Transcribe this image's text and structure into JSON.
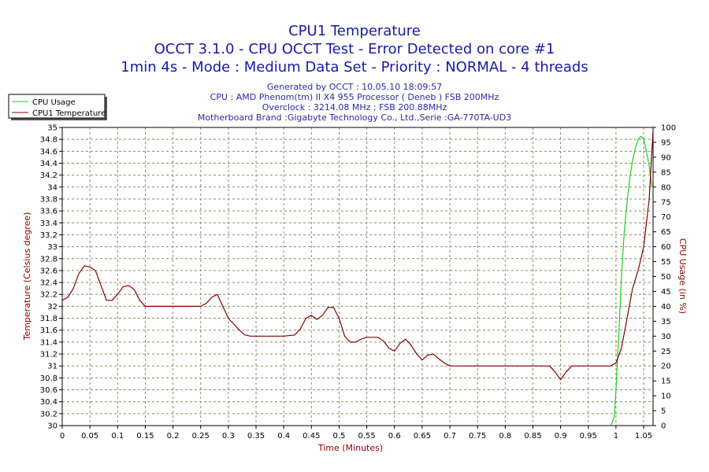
{
  "chart_data": {
    "type": "line",
    "titles": [
      "CPU1 Temperature",
      "OCCT 3.1.0 - CPU OCCT Test - Error Detected on core #1",
      "1min 4s - Mode : Medium Data Set - Priority : NORMAL - 4 threads"
    ],
    "info_lines": [
      "Generated by OCCT : 10.05.10 18:09:57",
      "CPU : AMD Phenom(tm) II X4 955 Processor ( Deneb ) FSB 200MHz",
      "Overclock : 3214.08 MHz ; FSB 200.88MHz",
      "Motherboard Brand :Gigabyte Technology Co., Ltd.,Serie :GA-770TA-UD3"
    ],
    "xlabel": "Time (Minutes)",
    "ylabel_left": "Temperature (Celsius degree)",
    "ylabel_right": "CPU Usage (in %)",
    "xlim": [
      0,
      1.067
    ],
    "ylim_left": [
      30,
      35
    ],
    "ylim_right": [
      0,
      100
    ],
    "x_ticks": [
      "0",
      "0.05",
      "0.1",
      "0.15",
      "0.2",
      "0.25",
      "0.3",
      "0.35",
      "0.4",
      "0.45",
      "0.5",
      "0.55",
      "0.6",
      "0.65",
      "0.7",
      "0.75",
      "0.8",
      "0.85",
      "0.9",
      "0.95",
      "1",
      "1.05"
    ],
    "y_ticks_left": [
      "30",
      "30.2",
      "30.4",
      "30.6",
      "30.8",
      "31",
      "31.2",
      "31.4",
      "31.6",
      "31.8",
      "32",
      "32.2",
      "32.4",
      "32.6",
      "32.8",
      "33",
      "33.2",
      "33.4",
      "33.6",
      "33.8",
      "34",
      "34.2",
      "34.4",
      "34.6",
      "34.8",
      "35"
    ],
    "y_ticks_right": [
      "0",
      "5",
      "10",
      "15",
      "20",
      "25",
      "30",
      "35",
      "40",
      "45",
      "50",
      "55",
      "60",
      "65",
      "70",
      "75",
      "80",
      "85",
      "90",
      "95",
      "100"
    ],
    "grid": true,
    "legend_position": "top-left",
    "series": [
      {
        "name": "CPU Usage",
        "color": "#22cc22",
        "axis": "right",
        "x": [
          0.991,
          0.997,
          1.0,
          1.005,
          1.01,
          1.015,
          1.02,
          1.025,
          1.03,
          1.035,
          1.04,
          1.045,
          1.05,
          1.055,
          1.06,
          1.065
        ],
        "y": [
          0,
          3,
          12,
          30,
          50,
          65,
          75,
          83,
          89,
          93,
          96,
          97,
          96,
          92,
          87,
          80
        ]
      },
      {
        "name": "CPU1 Temperature",
        "color": "#800000",
        "axis": "left",
        "x": [
          0.0,
          0.01,
          0.02,
          0.03,
          0.04,
          0.05,
          0.06,
          0.07,
          0.08,
          0.09,
          0.1,
          0.11,
          0.12,
          0.13,
          0.14,
          0.15,
          0.16,
          0.2,
          0.25,
          0.26,
          0.27,
          0.28,
          0.29,
          0.3,
          0.31,
          0.32,
          0.33,
          0.34,
          0.35,
          0.4,
          0.42,
          0.43,
          0.44,
          0.45,
          0.46,
          0.47,
          0.48,
          0.49,
          0.5,
          0.51,
          0.52,
          0.53,
          0.54,
          0.55,
          0.56,
          0.57,
          0.58,
          0.59,
          0.6,
          0.61,
          0.62,
          0.63,
          0.64,
          0.65,
          0.66,
          0.67,
          0.68,
          0.69,
          0.7,
          0.75,
          0.8,
          0.85,
          0.88,
          0.89,
          0.9,
          0.91,
          0.92,
          0.95,
          0.99,
          1.0,
          1.01,
          1.02,
          1.03,
          1.04,
          1.05,
          1.06,
          1.067
        ],
        "y": [
          32.1,
          32.15,
          32.3,
          32.55,
          32.68,
          32.66,
          32.6,
          32.35,
          32.1,
          32.1,
          32.2,
          32.33,
          32.35,
          32.28,
          32.1,
          32.0,
          32.0,
          32.0,
          32.0,
          32.05,
          32.15,
          32.2,
          32.0,
          31.8,
          31.7,
          31.6,
          31.52,
          31.5,
          31.5,
          31.5,
          31.52,
          31.62,
          31.8,
          31.85,
          31.78,
          31.85,
          31.98,
          31.98,
          31.8,
          31.5,
          31.4,
          31.4,
          31.45,
          31.48,
          31.48,
          31.48,
          31.42,
          31.3,
          31.25,
          31.38,
          31.45,
          31.35,
          31.2,
          31.1,
          31.18,
          31.2,
          31.12,
          31.05,
          31.0,
          31.0,
          31.0,
          31.0,
          31.0,
          30.9,
          30.77,
          30.9,
          31.0,
          31.0,
          31.0,
          31.05,
          31.3,
          31.8,
          32.3,
          32.6,
          33.0,
          33.8,
          34.95
        ]
      }
    ]
  }
}
